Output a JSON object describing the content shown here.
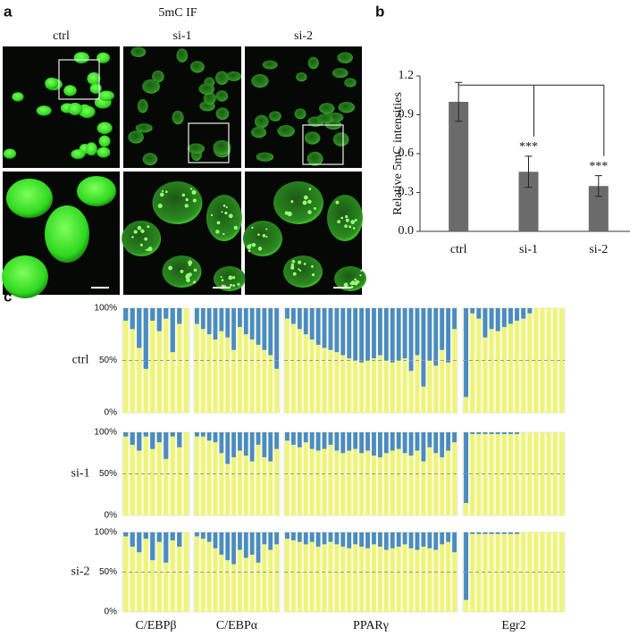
{
  "figure_a": {
    "label": "a",
    "title": "5mC IF",
    "columns": [
      "ctrl",
      "si-1",
      "si-2"
    ]
  },
  "chart_data": [
    {
      "type": "bar",
      "label": "b",
      "ylabel": "Relative 5mC intensities",
      "categories": [
        "ctrl",
        "si-1",
        "si-2"
      ],
      "values": [
        1.0,
        0.46,
        0.35
      ],
      "errors": [
        0.15,
        0.12,
        0.08
      ],
      "annotations": [
        null,
        "***",
        "***"
      ],
      "color": "#6b6b6b",
      "ylim": [
        0,
        1.2
      ],
      "yticks": [
        {
          "value": 0,
          "label": "0.0"
        },
        {
          "value": 0.3,
          "label": "0.3"
        },
        {
          "value": 0.6,
          "label": "0.6"
        },
        {
          "value": 0.9,
          "label": "0.9"
        },
        {
          "value": 1.2,
          "label": "1.2"
        }
      ]
    },
    {
      "type": "methylation",
      "label": "c",
      "groups": [
        "C/EBPβ",
        "C/EBPα",
        "PPARγ",
        "Egr2"
      ],
      "unmethylated_color": "#eef47a",
      "methylated_color": "#4a8cc2",
      "ylim": [
        0,
        100
      ],
      "yticks": [
        {
          "value": 0,
          "label": "0%"
        },
        {
          "value": 50,
          "label": "50%"
        },
        {
          "value": 100,
          "label": "100%"
        }
      ],
      "rows": [
        {
          "name": "ctrl",
          "values": [
            [
              88,
              80,
              62,
              42,
              88,
              78,
              90,
              58,
              85,
              100
            ],
            [
              85,
              80,
              75,
              70,
              78,
              72,
              60,
              82,
              75,
              70,
              65,
              60,
              55,
              42
            ],
            [
              90,
              85,
              80,
              75,
              70,
              65,
              62,
              60,
              58,
              55,
              52,
              50,
              48,
              50,
              52,
              55,
              50,
              48,
              50,
              52,
              40,
              55,
              25,
              50,
              45,
              60,
              48,
              80
            ],
            [
              15,
              95,
              90,
              72,
              80,
              78,
              82,
              85,
              88,
              90,
              95,
              100,
              100,
              100,
              100,
              100
            ]
          ]
        },
        {
          "name": "si-1",
          "values": [
            [
              95,
              85,
              78,
              95,
              80,
              88,
              68,
              95,
              82,
              100
            ],
            [
              95,
              95,
              90,
              88,
              75,
              62,
              70,
              78,
              72,
              65,
              85,
              70,
              65,
              80
            ],
            [
              90,
              85,
              82,
              88,
              80,
              78,
              80,
              85,
              78,
              75,
              78,
              80,
              75,
              78,
              72,
              70,
              75,
              78,
              80,
              75,
              72,
              78,
              65,
              82,
              75,
              70,
              78,
              88
            ],
            [
              15,
              98,
              98,
              98,
              98,
              98,
              98,
              98,
              98,
              100,
              100,
              100,
              100,
              100,
              100,
              100
            ]
          ]
        },
        {
          "name": "si-2",
          "values": [
            [
              95,
              82,
              75,
              92,
              65,
              88,
              62,
              90,
              82,
              100
            ],
            [
              95,
              92,
              88,
              80,
              72,
              65,
              60,
              78,
              68,
              72,
              62,
              85,
              78,
              85
            ],
            [
              92,
              90,
              88,
              85,
              88,
              82,
              85,
              88,
              85,
              82,
              80,
              85,
              82,
              80,
              85,
              82,
              78,
              80,
              82,
              85,
              80,
              78,
              82,
              80,
              78,
              85,
              88,
              75
            ],
            [
              15,
              98,
              98,
              98,
              98,
              98,
              98,
              98,
              98,
              100,
              100,
              100,
              100,
              100,
              100,
              100
            ]
          ]
        }
      ]
    }
  ]
}
